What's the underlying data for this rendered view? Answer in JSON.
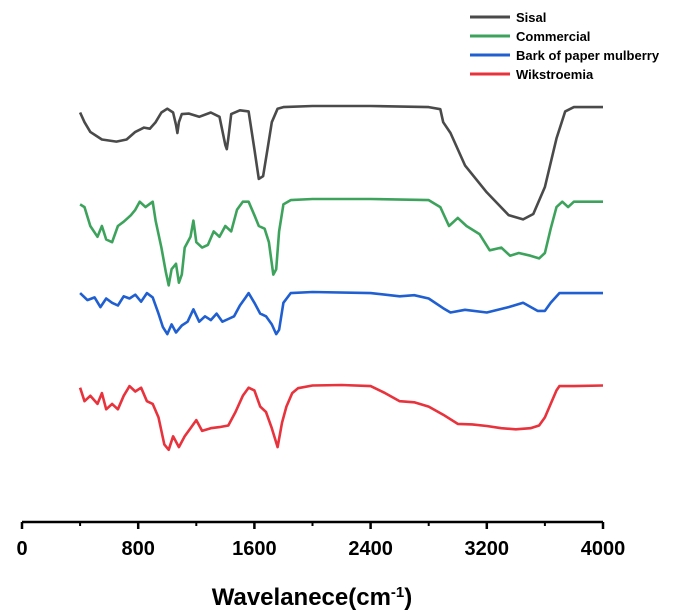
{
  "chart_data": {
    "type": "line",
    "xlabel": "Wavelanece(cm",
    "xlabel_sup": "-1",
    "xlabel_close": ")",
    "ylabel": "",
    "xlim": [
      0,
      4000
    ],
    "x_ticks": [
      0,
      800,
      1600,
      2400,
      3200,
      4000
    ],
    "x_tick_labels": [
      "0",
      "800",
      "1600",
      "2400",
      "3200",
      "4000"
    ],
    "grid": false,
    "legend_position": "top-right",
    "series": [
      {
        "name": "Sisal",
        "color": "#4a4a4a",
        "offset": 3,
        "points": [
          [
            400,
            0.12
          ],
          [
            430,
            0.3
          ],
          [
            470,
            0.48
          ],
          [
            550,
            0.62
          ],
          [
            650,
            0.66
          ],
          [
            720,
            0.62
          ],
          [
            780,
            0.48
          ],
          [
            840,
            0.4
          ],
          [
            880,
            0.42
          ],
          [
            920,
            0.3
          ],
          [
            960,
            0.12
          ],
          [
            1000,
            0.05
          ],
          [
            1040,
            0.12
          ],
          [
            1060,
            0.35
          ],
          [
            1070,
            0.5
          ],
          [
            1080,
            0.3
          ],
          [
            1100,
            0.15
          ],
          [
            1150,
            0.14
          ],
          [
            1220,
            0.2
          ],
          [
            1300,
            0.12
          ],
          [
            1360,
            0.2
          ],
          [
            1400,
            0.72
          ],
          [
            1410,
            0.8
          ],
          [
            1420,
            0.6
          ],
          [
            1440,
            0.15
          ],
          [
            1500,
            0.08
          ],
          [
            1560,
            0.1
          ],
          [
            1600,
            0.8
          ],
          [
            1630,
            1.35
          ],
          [
            1660,
            1.3
          ],
          [
            1690,
            0.8
          ],
          [
            1720,
            0.3
          ],
          [
            1760,
            0.05
          ],
          [
            1800,
            0.02
          ],
          [
            2000,
            0.0
          ],
          [
            2400,
            0.0
          ],
          [
            2800,
            0.02
          ],
          [
            2880,
            0.06
          ],
          [
            2900,
            0.3
          ],
          [
            2950,
            0.5
          ],
          [
            3050,
            1.1
          ],
          [
            3200,
            1.6
          ],
          [
            3350,
            2.02
          ],
          [
            3450,
            2.1
          ],
          [
            3520,
            2.0
          ],
          [
            3600,
            1.5
          ],
          [
            3680,
            0.6
          ],
          [
            3740,
            0.1
          ],
          [
            3800,
            0.02
          ],
          [
            4000,
            0.02
          ]
        ]
      },
      {
        "name": "Commercial",
        "color": "#3da35c",
        "offset": 2,
        "points": [
          [
            400,
            0.1
          ],
          [
            430,
            0.15
          ],
          [
            470,
            0.5
          ],
          [
            520,
            0.7
          ],
          [
            550,
            0.5
          ],
          [
            580,
            0.75
          ],
          [
            620,
            0.8
          ],
          [
            660,
            0.5
          ],
          [
            700,
            0.42
          ],
          [
            750,
            0.3
          ],
          [
            780,
            0.2
          ],
          [
            810,
            0.05
          ],
          [
            850,
            0.15
          ],
          [
            900,
            0.05
          ],
          [
            920,
            0.4
          ],
          [
            960,
            0.9
          ],
          [
            990,
            1.35
          ],
          [
            1010,
            1.6
          ],
          [
            1030,
            1.3
          ],
          [
            1060,
            1.2
          ],
          [
            1080,
            1.55
          ],
          [
            1100,
            1.4
          ],
          [
            1120,
            0.9
          ],
          [
            1160,
            0.7
          ],
          [
            1180,
            0.4
          ],
          [
            1200,
            0.8
          ],
          [
            1240,
            0.9
          ],
          [
            1280,
            0.85
          ],
          [
            1320,
            0.6
          ],
          [
            1360,
            0.7
          ],
          [
            1400,
            0.5
          ],
          [
            1440,
            0.6
          ],
          [
            1480,
            0.2
          ],
          [
            1520,
            0.05
          ],
          [
            1560,
            0.05
          ],
          [
            1600,
            0.3
          ],
          [
            1630,
            0.5
          ],
          [
            1670,
            0.55
          ],
          [
            1700,
            0.8
          ],
          [
            1730,
            1.4
          ],
          [
            1750,
            1.3
          ],
          [
            1770,
            0.6
          ],
          [
            1800,
            0.1
          ],
          [
            1850,
            0.02
          ],
          [
            2000,
            0.0
          ],
          [
            2400,
            0.0
          ],
          [
            2800,
            0.02
          ],
          [
            2880,
            0.15
          ],
          [
            2940,
            0.5
          ],
          [
            3000,
            0.35
          ],
          [
            3060,
            0.5
          ],
          [
            3150,
            0.65
          ],
          [
            3220,
            0.95
          ],
          [
            3300,
            0.9
          ],
          [
            3360,
            1.05
          ],
          [
            3420,
            1.0
          ],
          [
            3500,
            1.05
          ],
          [
            3560,
            1.1
          ],
          [
            3600,
            1.0
          ],
          [
            3640,
            0.55
          ],
          [
            3680,
            0.15
          ],
          [
            3720,
            0.05
          ],
          [
            3760,
            0.15
          ],
          [
            3800,
            0.05
          ],
          [
            4000,
            0.05
          ]
        ]
      },
      {
        "name": "Bark of paper mulberry",
        "color": "#1f5fd1",
        "offset": 1,
        "points": [
          [
            400,
            0.02
          ],
          [
            450,
            0.15
          ],
          [
            500,
            0.1
          ],
          [
            540,
            0.28
          ],
          [
            580,
            0.12
          ],
          [
            620,
            0.2
          ],
          [
            660,
            0.25
          ],
          [
            700,
            0.08
          ],
          [
            740,
            0.12
          ],
          [
            780,
            0.05
          ],
          [
            820,
            0.18
          ],
          [
            860,
            0.02
          ],
          [
            900,
            0.1
          ],
          [
            940,
            0.4
          ],
          [
            970,
            0.65
          ],
          [
            1000,
            0.78
          ],
          [
            1030,
            0.6
          ],
          [
            1060,
            0.75
          ],
          [
            1100,
            0.62
          ],
          [
            1140,
            0.55
          ],
          [
            1180,
            0.32
          ],
          [
            1220,
            0.55
          ],
          [
            1260,
            0.45
          ],
          [
            1300,
            0.52
          ],
          [
            1340,
            0.4
          ],
          [
            1380,
            0.55
          ],
          [
            1420,
            0.5
          ],
          [
            1460,
            0.45
          ],
          [
            1500,
            0.25
          ],
          [
            1540,
            0.1
          ],
          [
            1560,
            0.02
          ],
          [
            1600,
            0.2
          ],
          [
            1640,
            0.4
          ],
          [
            1680,
            0.45
          ],
          [
            1720,
            0.6
          ],
          [
            1750,
            0.78
          ],
          [
            1770,
            0.7
          ],
          [
            1800,
            0.2
          ],
          [
            1850,
            0.02
          ],
          [
            2000,
            0.0
          ],
          [
            2400,
            0.02
          ],
          [
            2600,
            0.08
          ],
          [
            2700,
            0.06
          ],
          [
            2800,
            0.12
          ],
          [
            2900,
            0.3
          ],
          [
            2950,
            0.38
          ],
          [
            3050,
            0.33
          ],
          [
            3200,
            0.38
          ],
          [
            3350,
            0.28
          ],
          [
            3450,
            0.2
          ],
          [
            3550,
            0.35
          ],
          [
            3600,
            0.35
          ],
          [
            3640,
            0.2
          ],
          [
            3700,
            0.02
          ],
          [
            3800,
            0.02
          ],
          [
            4000,
            0.02
          ]
        ]
      },
      {
        "name": "Wikstroemia",
        "color": "#e8323c",
        "offset": 0,
        "points": [
          [
            400,
            0.05
          ],
          [
            430,
            0.3
          ],
          [
            470,
            0.2
          ],
          [
            520,
            0.35
          ],
          [
            550,
            0.15
          ],
          [
            580,
            0.45
          ],
          [
            620,
            0.35
          ],
          [
            660,
            0.45
          ],
          [
            700,
            0.2
          ],
          [
            740,
            0.02
          ],
          [
            780,
            0.12
          ],
          [
            820,
            0.05
          ],
          [
            860,
            0.3
          ],
          [
            900,
            0.35
          ],
          [
            940,
            0.6
          ],
          [
            980,
            1.1
          ],
          [
            1010,
            1.2
          ],
          [
            1040,
            0.95
          ],
          [
            1080,
            1.15
          ],
          [
            1120,
            0.95
          ],
          [
            1160,
            0.8
          ],
          [
            1200,
            0.65
          ],
          [
            1240,
            0.85
          ],
          [
            1300,
            0.8
          ],
          [
            1360,
            0.78
          ],
          [
            1420,
            0.75
          ],
          [
            1470,
            0.5
          ],
          [
            1520,
            0.2
          ],
          [
            1560,
            0.05
          ],
          [
            1600,
            0.1
          ],
          [
            1640,
            0.4
          ],
          [
            1680,
            0.5
          ],
          [
            1720,
            0.8
          ],
          [
            1760,
            1.15
          ],
          [
            1790,
            0.7
          ],
          [
            1820,
            0.4
          ],
          [
            1860,
            0.15
          ],
          [
            1900,
            0.06
          ],
          [
            2000,
            0.01
          ],
          [
            2200,
            0.0
          ],
          [
            2400,
            0.02
          ],
          [
            2500,
            0.15
          ],
          [
            2600,
            0.3
          ],
          [
            2700,
            0.32
          ],
          [
            2800,
            0.4
          ],
          [
            2900,
            0.55
          ],
          [
            3000,
            0.72
          ],
          [
            3100,
            0.73
          ],
          [
            3200,
            0.76
          ],
          [
            3300,
            0.8
          ],
          [
            3400,
            0.82
          ],
          [
            3500,
            0.8
          ],
          [
            3560,
            0.75
          ],
          [
            3600,
            0.6
          ],
          [
            3640,
            0.35
          ],
          [
            3680,
            0.1
          ],
          [
            3700,
            0.02
          ],
          [
            3800,
            0.02
          ],
          [
            4000,
            0.01
          ]
        ]
      }
    ]
  }
}
